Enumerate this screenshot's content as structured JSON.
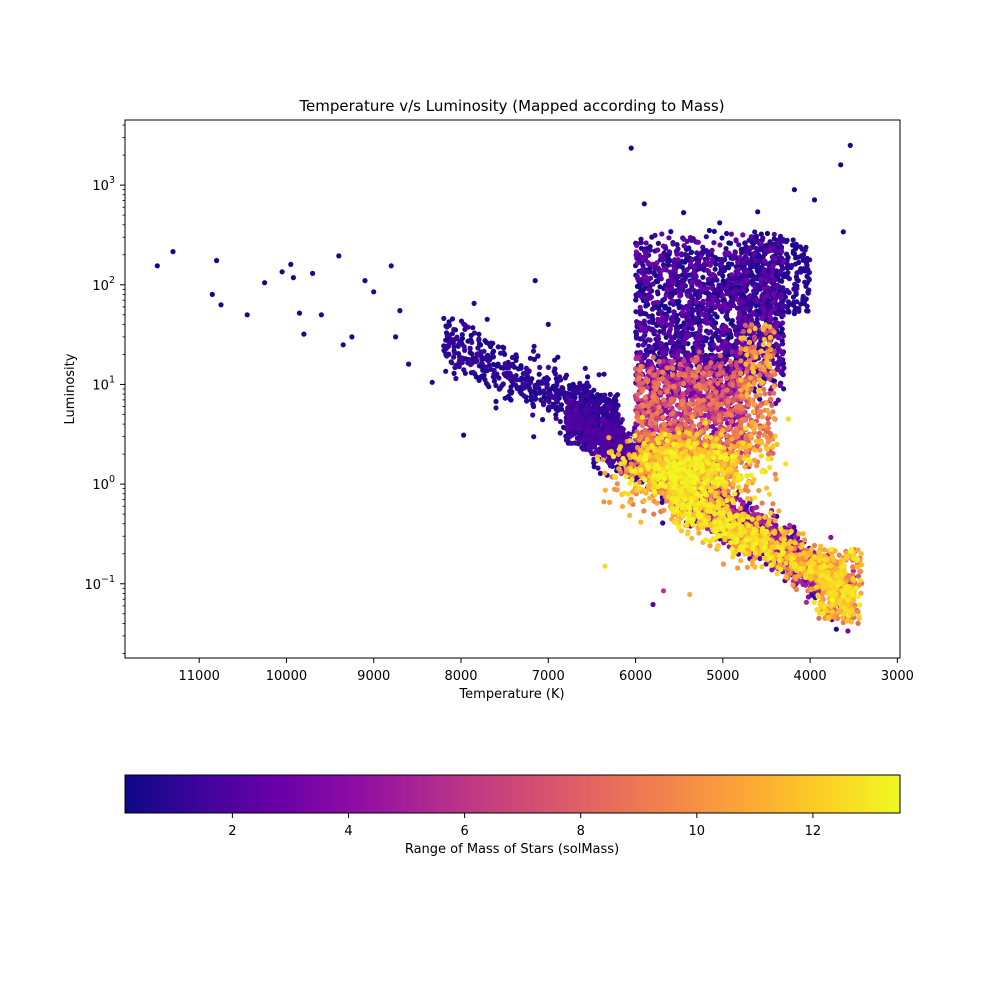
{
  "chart_data": {
    "type": "scatter",
    "title": "Temperature v/s Luminosity (Mapped according to Mass)",
    "xlabel": "Temperature (K)",
    "ylabel": "Luminosity",
    "xlim": [
      11850,
      2970
    ],
    "ylim": [
      0.018,
      4500
    ],
    "x_scale": "linear",
    "x_inverted": true,
    "y_scale": "log",
    "grid": false,
    "x_ticks": [
      {
        "value": 11000,
        "label": "11000"
      },
      {
        "value": 10000,
        "label": "10000"
      },
      {
        "value": 9000,
        "label": "9000"
      },
      {
        "value": 8000,
        "label": "8000"
      },
      {
        "value": 7000,
        "label": "7000"
      },
      {
        "value": 6000,
        "label": "6000"
      },
      {
        "value": 5000,
        "label": "5000"
      },
      {
        "value": 4000,
        "label": "4000"
      },
      {
        "value": 3000,
        "label": "3000"
      }
    ],
    "y_ticks": [
      {
        "value": 0.1,
        "base": "10",
        "exp": "−1"
      },
      {
        "value": 1,
        "base": "10",
        "exp": "0"
      },
      {
        "value": 10,
        "base": "10",
        "exp": "1"
      },
      {
        "value": 100,
        "base": "10",
        "exp": "2"
      },
      {
        "value": 1000,
        "base": "10",
        "exp": "3"
      }
    ],
    "colormap": "plasma",
    "colormap_stops": [
      "#0d0887",
      "#41049d",
      "#6a00a8",
      "#8f0da4",
      "#b12a90",
      "#cc4778",
      "#e16462",
      "#f2844b",
      "#fca636",
      "#fcce25",
      "#f0f921"
    ],
    "colorbar": {
      "label": "Range of Mass of Stars (solMass)",
      "range": [
        0.15,
        13.5
      ],
      "ticks": [
        {
          "value": 2,
          "label": "2"
        },
        {
          "value": 4,
          "label": "4"
        },
        {
          "value": 6,
          "label": "6"
        },
        {
          "value": 8,
          "label": "8"
        },
        {
          "value": 10,
          "label": "10"
        },
        {
          "value": 12,
          "label": "12"
        }
      ]
    },
    "series": [
      {
        "points": [
          [
            11480,
            155,
            0.3
          ],
          [
            11300,
            215,
            0.3
          ],
          [
            10850,
            80,
            0.3
          ],
          [
            10800,
            175,
            0.3
          ],
          [
            10750,
            63,
            0.3
          ],
          [
            10450,
            50,
            0.4
          ],
          [
            10250,
            105,
            0.4
          ],
          [
            10050,
            135,
            0.4
          ],
          [
            9950,
            160,
            0.4
          ],
          [
            9920,
            118,
            0.4
          ],
          [
            9850,
            52,
            0.5
          ],
          [
            9800,
            32,
            0.5
          ],
          [
            9700,
            130,
            0.5
          ],
          [
            9600,
            50,
            0.5
          ],
          [
            9400,
            195,
            0.5
          ],
          [
            9350,
            25,
            0.5
          ],
          [
            9250,
            30,
            0.5
          ],
          [
            9100,
            110,
            0.5
          ],
          [
            9000,
            85,
            0.5
          ],
          [
            8800,
            155,
            0.6
          ],
          [
            8750,
            30,
            0.6
          ],
          [
            8700,
            55,
            0.6
          ],
          [
            8600,
            16,
            0.6
          ],
          [
            8330,
            10.5,
            0.6
          ],
          [
            7970,
            3.1,
            0.6
          ],
          [
            7850,
            65,
            0.6
          ],
          [
            7700,
            45,
            0.6
          ],
          [
            7500,
            20,
            0.6
          ],
          [
            7300,
            9,
            0.6
          ],
          [
            7150,
            110,
            0.5
          ],
          [
            7000,
            40,
            0.6
          ],
          [
            6050,
            2350,
            0.4
          ],
          [
            5900,
            650,
            0.4
          ],
          [
            5450,
            530,
            0.4
          ],
          [
            4600,
            540,
            0.3
          ],
          [
            4180,
            900,
            0.3
          ],
          [
            3950,
            710,
            0.3
          ],
          [
            3650,
            1600,
            0.3
          ],
          [
            3540,
            2500,
            0.4
          ],
          [
            3620,
            340,
            0.3
          ],
          [
            4530,
            10.5,
            9.2
          ],
          [
            4380,
            2.5,
            11.5
          ],
          [
            4250,
            4.5,
            12.5
          ],
          [
            6350,
            0.15,
            12.5
          ],
          [
            5380,
            0.078,
            11
          ],
          [
            3700,
            0.035,
            0.3
          ],
          [
            3450,
            0.04,
            8.5
          ],
          [
            5800,
            0.062,
            2.5
          ],
          [
            5680,
            0.085,
            6
          ]
        ]
      }
    ]
  }
}
